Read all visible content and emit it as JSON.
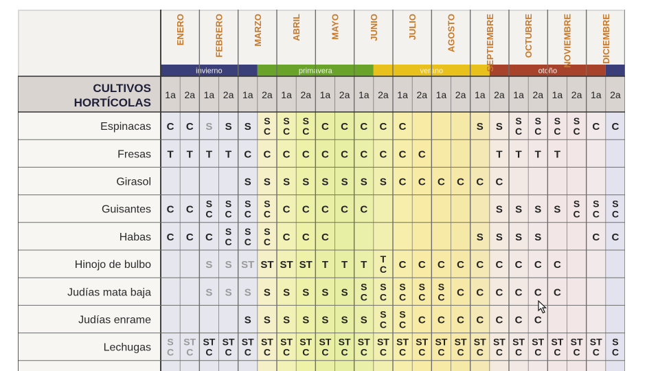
{
  "header": {
    "title_line1": "CULTIVOS",
    "title_line2": "HORTÍCOLAS"
  },
  "months": [
    "ENERO",
    "FEBRERO",
    "MARZO",
    "ABRIL",
    "MAYO",
    "JUNIO",
    "JULIO",
    "AGOSTO",
    "SEPTIEMBRE",
    "OCTUBRE",
    "NOVIEMBRE",
    "DICIEMBRE"
  ],
  "seasons": [
    {
      "label": "invierno",
      "color": "#3a3f7a",
      "start": 0,
      "span": 5
    },
    {
      "label": "primavera",
      "color": "#6aa32a",
      "start": 5,
      "span": 6
    },
    {
      "label": "verano",
      "color": "#e8c11d",
      "start": 11,
      "span": 6
    },
    {
      "label": "otoño",
      "color": "#a8432b",
      "start": 17,
      "span": 6
    },
    {
      "label": "",
      "color": "#3a3f7a",
      "start": 23,
      "span": 1
    }
  ],
  "fortnights": [
    "1a",
    "2a",
    "1a",
    "2a",
    "1a",
    "2a",
    "1a",
    "2a",
    "1a",
    "2a",
    "1a",
    "2a",
    "1a",
    "2a",
    "1a",
    "2a",
    "1a",
    "2a",
    "1a",
    "2a",
    "1a",
    "2a",
    "1a",
    "2a"
  ],
  "column_tints": [
    "#e5e6ee",
    "#e5e6ee",
    "#e5e6ee",
    "#e5e6ee",
    "#e5e6ee",
    "#f6f0c8",
    "#f3f2b6",
    "#eef1a8",
    "#e9efa4",
    "#e6efa4",
    "#eaf0a9",
    "#f2f0b0",
    "#f6eeaa",
    "#f8eba6",
    "#f7eaa7",
    "#f6e9a8",
    "#f4e8b4",
    "#f4eadf",
    "#f3e9e4",
    "#f3e8e8",
    "#f3e6e6",
    "#f3e6e6",
    "#f2eaea",
    "#e2e3ee"
  ],
  "crops": [
    {
      "name": "Espinacas",
      "cells": [
        "C",
        "C",
        "S",
        "S",
        "S",
        "S|C",
        "S|C",
        "S|C",
        "C",
        "C",
        "C",
        "C",
        "C",
        "",
        "",
        "",
        "S",
        "S",
        "S|C",
        "S|C",
        "S|C",
        "S|C",
        "C",
        "C"
      ]
    },
    {
      "name": "Fresas",
      "cells": [
        "T",
        "T",
        "T",
        "T",
        "C",
        "C",
        "C",
        "C",
        "C",
        "C",
        "C",
        "C",
        "C",
        "C",
        "",
        "",
        "",
        "T",
        "T",
        "T",
        "T",
        "",
        "",
        ""
      ]
    },
    {
      "name": "Girasol",
      "cells": [
        "",
        "",
        "",
        "",
        "S",
        "S",
        "S",
        "S",
        "S",
        "S",
        "S",
        "S",
        "C",
        "C",
        "C",
        "C",
        "C",
        "C",
        "",
        "",
        "",
        "",
        "",
        ""
      ]
    },
    {
      "name": "Guisantes",
      "cells": [
        "C",
        "C",
        "S|C",
        "S|C",
        "S|C",
        "S|C",
        "C",
        "C",
        "C",
        "C",
        "C",
        "",
        "",
        "",
        "",
        "",
        "",
        "S",
        "S",
        "S",
        "S",
        "S|C",
        "S|C",
        "S|C"
      ]
    },
    {
      "name": "Habas",
      "cells": [
        "C",
        "C",
        "C",
        "S|C",
        "S|C",
        "S|C",
        "C",
        "C",
        "C",
        "",
        "",
        "",
        "",
        "",
        "",
        "",
        "S",
        "S",
        "S",
        "S",
        "",
        "",
        "C",
        "C"
      ]
    },
    {
      "name": "Hinojo de bulbo",
      "cells": [
        "",
        "",
        "S",
        "S",
        "ST",
        "ST",
        "ST",
        "ST",
        "T",
        "T",
        "T",
        "T|C",
        "C",
        "C",
        "C",
        "C",
        "C",
        "C",
        "C",
        "C",
        "C",
        "",
        "",
        ""
      ]
    },
    {
      "name": "Judías mata baja",
      "cells": [
        "",
        "",
        "S",
        "S",
        "S",
        "S",
        "S",
        "S",
        "S",
        "S",
        "S|C",
        "S|C",
        "S|C",
        "S|C",
        "S|C",
        "C",
        "C",
        "C",
        "C",
        "C",
        "C",
        "",
        "",
        ""
      ]
    },
    {
      "name": "Judías enrame",
      "cells": [
        "",
        "",
        "",
        "",
        "S",
        "S",
        "S",
        "S",
        "S",
        "S",
        "S",
        "S|C",
        "S|C",
        "C",
        "C",
        "C",
        "C",
        "C",
        "C",
        "C",
        "",
        "",
        "",
        ""
      ]
    },
    {
      "name": "Lechugas",
      "cells": [
        "S|C",
        "ST|C",
        "ST|C",
        "ST|C",
        "ST|C",
        "ST|C",
        "ST|C",
        "ST|C",
        "ST|C",
        "ST|C",
        "ST|C",
        "ST|C",
        "ST|C",
        "ST|C",
        "ST|C",
        "ST|C",
        "ST|C",
        "ST|C",
        "ST|C",
        "ST|C",
        "ST|C",
        "ST|C",
        "ST|C",
        "S|C"
      ]
    }
  ],
  "faded_cells": [
    "0-2",
    "5-2",
    "5-3",
    "5-4",
    "6-2",
    "6-3",
    "6-4",
    "8-0",
    "8-1"
  ],
  "colors": {
    "ink": "#222222",
    "month_text": "#c7792b",
    "grid_line": "#6d6d6d",
    "header_band": "#d9d4d0"
  }
}
